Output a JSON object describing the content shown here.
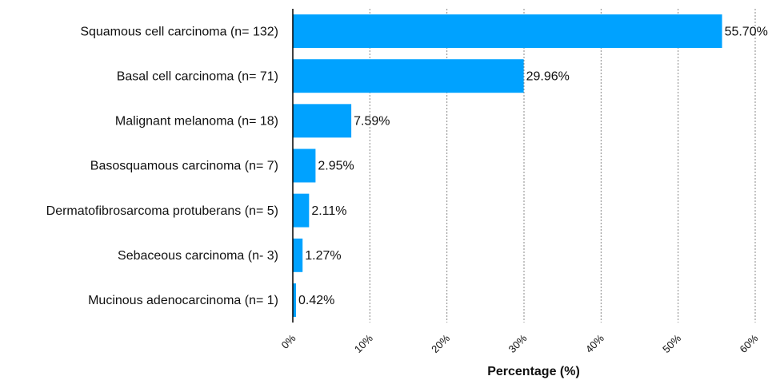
{
  "chart_data": {
    "type": "barh",
    "xlabel": "Percentage (%)",
    "categories": [
      "Squamous cell carcinoma (n= 132)",
      "Basal cell carcinoma (n= 71)",
      "Malignant melanoma (n= 18)",
      "Basosquamous carcinoma (n= 7)",
      "Dermatofibrosarcoma protuberans (n= 5)",
      "Sebaceous carcinoma (n- 3)",
      "Mucinous adenocarcinoma (n= 1)"
    ],
    "values": [
      55.7,
      29.96,
      7.59,
      2.95,
      2.11,
      1.27,
      0.42
    ],
    "value_labels": [
      "55.70%",
      "29.96%",
      "7.59%",
      "2.95%",
      "2.11%",
      "1.27%",
      "0.42%"
    ],
    "color": "#00a2ff",
    "xlim": [
      0,
      60
    ],
    "xticks": [
      {
        "value": 0,
        "label": "0%"
      },
      {
        "value": 10,
        "label": "10%"
      },
      {
        "value": 20,
        "label": "20%"
      },
      {
        "value": 30,
        "label": "30%"
      },
      {
        "value": 40,
        "label": "40%"
      },
      {
        "value": 50,
        "label": "50%"
      },
      {
        "value": 60,
        "label": "60%"
      }
    ],
    "grid": true
  }
}
